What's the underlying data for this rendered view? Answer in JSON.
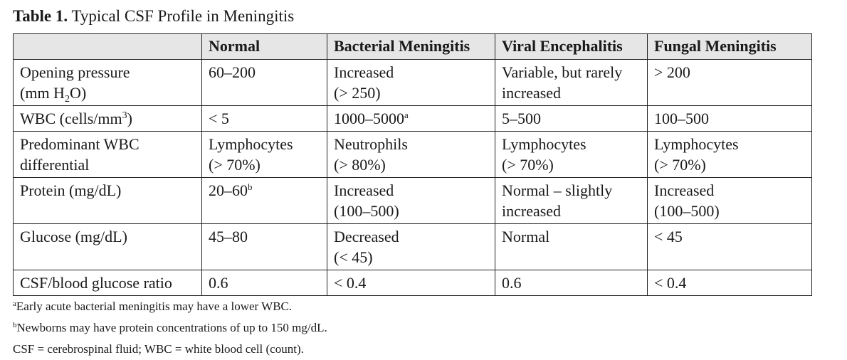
{
  "title": {
    "label": "Table 1.",
    "text": "Typical CSF Profile in Meningitis"
  },
  "headers": {
    "blank": "",
    "normal": "Normal",
    "bacterial": "Bacterial Meningitis",
    "viral": "Viral Encephalitis",
    "fungal": "Fungal Meningitis"
  },
  "rows": {
    "opening": {
      "label_1": "Opening pressure",
      "label_2_pre": "(mm H",
      "label_2_sub": "2",
      "label_2_post": "O)",
      "normal": "60–200",
      "bacterial_1": "Increased",
      "bacterial_2": "(> 250)",
      "viral_1": "Variable, but rarely",
      "viral_2": "increased",
      "fungal": "> 200"
    },
    "wbc": {
      "label_pre": "WBC (cells/mm",
      "label_sup": "3",
      "label_post": ")",
      "normal": "< 5",
      "bacterial": "1000–5000",
      "bacterial_note": "a",
      "viral": "5–500",
      "fungal": "100–500"
    },
    "differential": {
      "label_1": "Predominant WBC",
      "label_2": "differential",
      "normal_1": "Lymphocytes",
      "normal_2": "(> 70%)",
      "bacterial_1": "Neutrophils",
      "bacterial_2": "(> 80%)",
      "viral_1": "Lymphocytes",
      "viral_2": "(> 70%)",
      "fungal_1": "Lymphocytes",
      "fungal_2": "(> 70%)"
    },
    "protein": {
      "label": "Protein (mg/dL)",
      "normal": "20–60",
      "normal_note": "b",
      "bacterial_1": "Increased",
      "bacterial_2": "(100–500)",
      "viral_1": "Normal – slightly",
      "viral_2": "increased",
      "fungal_1": "Increased",
      "fungal_2": "(100–500)"
    },
    "glucose": {
      "label": "Glucose (mg/dL)",
      "normal": "45–80",
      "bacterial_1": "Decreased",
      "bacterial_2": "(< 45)",
      "viral": "Normal",
      "fungal": "< 45"
    },
    "ratio": {
      "label": "CSF/blood glucose ratio",
      "normal": "0.6",
      "bacterial": "< 0.4",
      "viral": "0.6",
      "fungal": "< 0.4"
    }
  },
  "footnotes": {
    "a_mark": "a",
    "a_text": "Early acute bacterial meningitis may have a lower WBC.",
    "b_mark": "b",
    "b_text": "Newborns may have protein concentrations of up to 150 mg/dL.",
    "abbrev": "CSF = cerebrospinal fluid; WBC = white blood cell (count)."
  }
}
